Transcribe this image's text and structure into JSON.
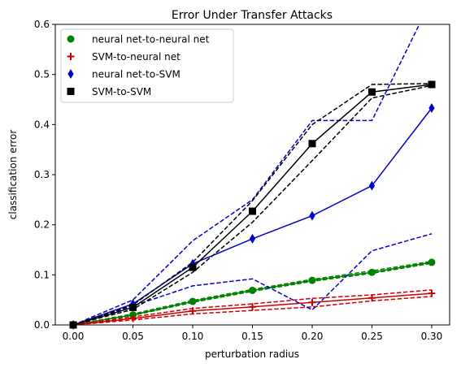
{
  "chart_data": {
    "type": "line",
    "title": "Error Under Transfer Attacks",
    "xlabel": "perturbation radius",
    "ylabel": "classification error",
    "xlim": [
      -0.015,
      0.315
    ],
    "ylim": [
      0,
      0.6
    ],
    "xticks": [
      "0.00",
      "0.05",
      "0.10",
      "0.15",
      "0.20",
      "0.25",
      "0.30"
    ],
    "yticks": [
      "0.0",
      "0.1",
      "0.2",
      "0.3",
      "0.4",
      "0.5",
      "0.6"
    ],
    "x": [
      0.0,
      0.05,
      0.1,
      0.15,
      0.2,
      0.25,
      0.3
    ],
    "legend_position": "top-left",
    "grid": false,
    "series": [
      {
        "name": "neural net-to-neural net",
        "color": "#008000",
        "marker": "circle",
        "values": [
          0.0,
          0.02,
          0.047,
          0.069,
          0.089,
          0.105,
          0.125
        ],
        "lower": [
          0.0,
          0.019,
          0.045,
          0.067,
          0.087,
          0.103,
          0.123
        ],
        "upper": [
          0.0,
          0.022,
          0.049,
          0.071,
          0.091,
          0.108,
          0.127
        ]
      },
      {
        "name": "SVM-to-neural net",
        "color": "#cc0000",
        "marker": "plus",
        "values": [
          0.0,
          0.013,
          0.028,
          0.036,
          0.045,
          0.054,
          0.063
        ],
        "lower": [
          0.0,
          0.01,
          0.022,
          0.029,
          0.036,
          0.048,
          0.057
        ],
        "upper": [
          0.0,
          0.016,
          0.033,
          0.042,
          0.053,
          0.06,
          0.07
        ]
      },
      {
        "name": "neural net-to-SVM",
        "color": "#0000cc",
        "marker": "thin_diamond",
        "values": [
          0.0,
          0.042,
          0.122,
          0.172,
          0.218,
          0.278,
          0.433
        ],
        "lower": [
          0.0,
          0.038,
          0.078,
          0.092,
          0.03,
          0.148,
          0.182
        ],
        "upper": [
          0.0,
          0.05,
          0.168,
          0.25,
          0.408,
          0.408,
          0.65
        ]
      },
      {
        "name": "SVM-to-SVM",
        "color": "#000000",
        "marker": "square",
        "values": [
          0.0,
          0.035,
          0.115,
          0.227,
          0.362,
          0.465,
          0.48
        ],
        "lower": [
          0.0,
          0.031,
          0.105,
          0.205,
          0.328,
          0.453,
          0.478
        ],
        "upper": [
          0.0,
          0.04,
          0.125,
          0.248,
          0.4,
          0.48,
          0.482
        ]
      }
    ]
  }
}
